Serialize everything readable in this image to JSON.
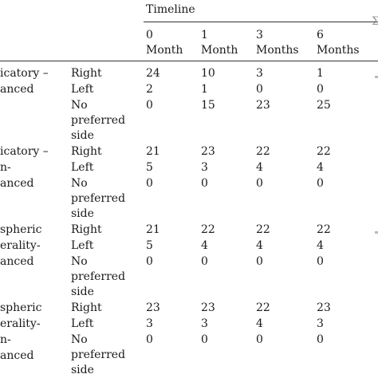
{
  "header": {
    "timeline_label": "Timeline",
    "columns": [
      {
        "line1": "0",
        "line2": "Month"
      },
      {
        "line1": "1",
        "line2": "Month"
      },
      {
        "line1": "3",
        "line2": "Months"
      },
      {
        "line1": "6",
        "line2": "Months"
      }
    ],
    "partial_glyph": "Σ"
  },
  "groups": [
    {
      "label_lines": [
        "icatory –",
        "anced"
      ],
      "rows": [
        {
          "side": [
            "Right"
          ],
          "values": [
            "24",
            "10",
            "3",
            "1"
          ]
        },
        {
          "side": [
            "Left"
          ],
          "values": [
            "2",
            "1",
            "0",
            "0"
          ]
        },
        {
          "side": [
            "No",
            "preferred",
            "side"
          ],
          "values": [
            "0",
            "15",
            "23",
            "25"
          ]
        }
      ]
    },
    {
      "label_lines": [
        "icatory –",
        "n-",
        "anced"
      ],
      "rows": [
        {
          "side": [
            "Right"
          ],
          "values": [
            "21",
            "23",
            "22",
            "22"
          ]
        },
        {
          "side": [
            "Left"
          ],
          "values": [
            "5",
            "3",
            "4",
            "4"
          ]
        },
        {
          "side": [
            "No",
            "preferred",
            "side"
          ],
          "values": [
            "0",
            "0",
            "0",
            "0"
          ]
        }
      ]
    },
    {
      "label_lines": [
        "spheric",
        "erality-",
        "anced"
      ],
      "rows": [
        {
          "side": [
            "Right"
          ],
          "values": [
            "21",
            "22",
            "22",
            "22"
          ]
        },
        {
          "side": [
            "Left"
          ],
          "values": [
            "5",
            "4",
            "4",
            "4"
          ]
        },
        {
          "side": [
            "No",
            "preferred",
            "side"
          ],
          "values": [
            "0",
            "0",
            "0",
            "0"
          ]
        }
      ]
    },
    {
      "label_lines": [
        "spheric",
        "erality-",
        "n-",
        "anced"
      ],
      "rows": [
        {
          "side": [
            "Right"
          ],
          "values": [
            "23",
            "23",
            "22",
            "23"
          ]
        },
        {
          "side": [
            "Left"
          ],
          "values": [
            "3",
            "3",
            "4",
            "3"
          ]
        },
        {
          "side": [
            "No",
            "preferred",
            "side"
          ],
          "values": [
            "0",
            "0",
            "0",
            "0"
          ]
        }
      ]
    }
  ]
}
